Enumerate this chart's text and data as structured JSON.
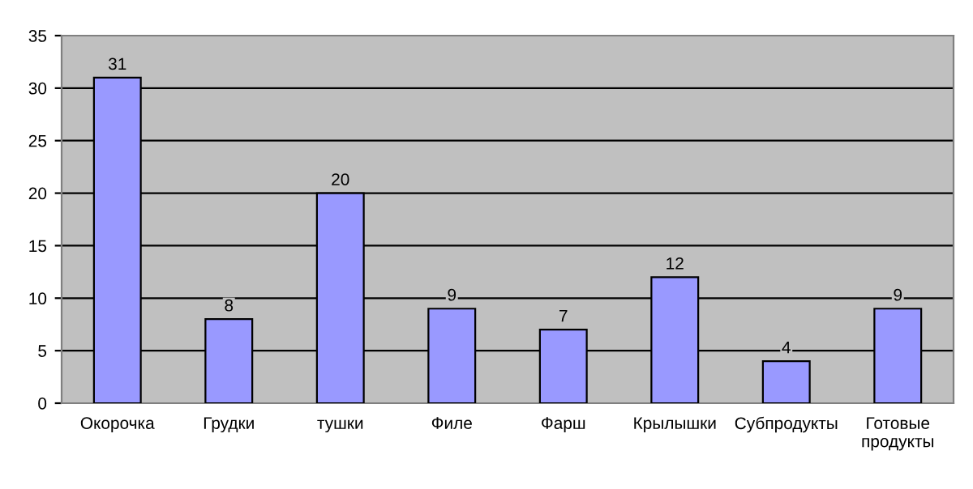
{
  "chart_data": {
    "type": "bar",
    "categories": [
      "Окорочка",
      "Грудки",
      "тушки",
      "Филе",
      "Фарш",
      "Крылышки",
      "Субпродукты",
      "Готовые продукты"
    ],
    "values": [
      31,
      8,
      20,
      9,
      7,
      12,
      4,
      9
    ],
    "color": "#9999ff",
    "ylim": [
      0,
      35
    ],
    "yticks": [
      0,
      5,
      10,
      15,
      20,
      25,
      30,
      35
    ],
    "grid": "y",
    "data_labels": true,
    "legend": false
  }
}
